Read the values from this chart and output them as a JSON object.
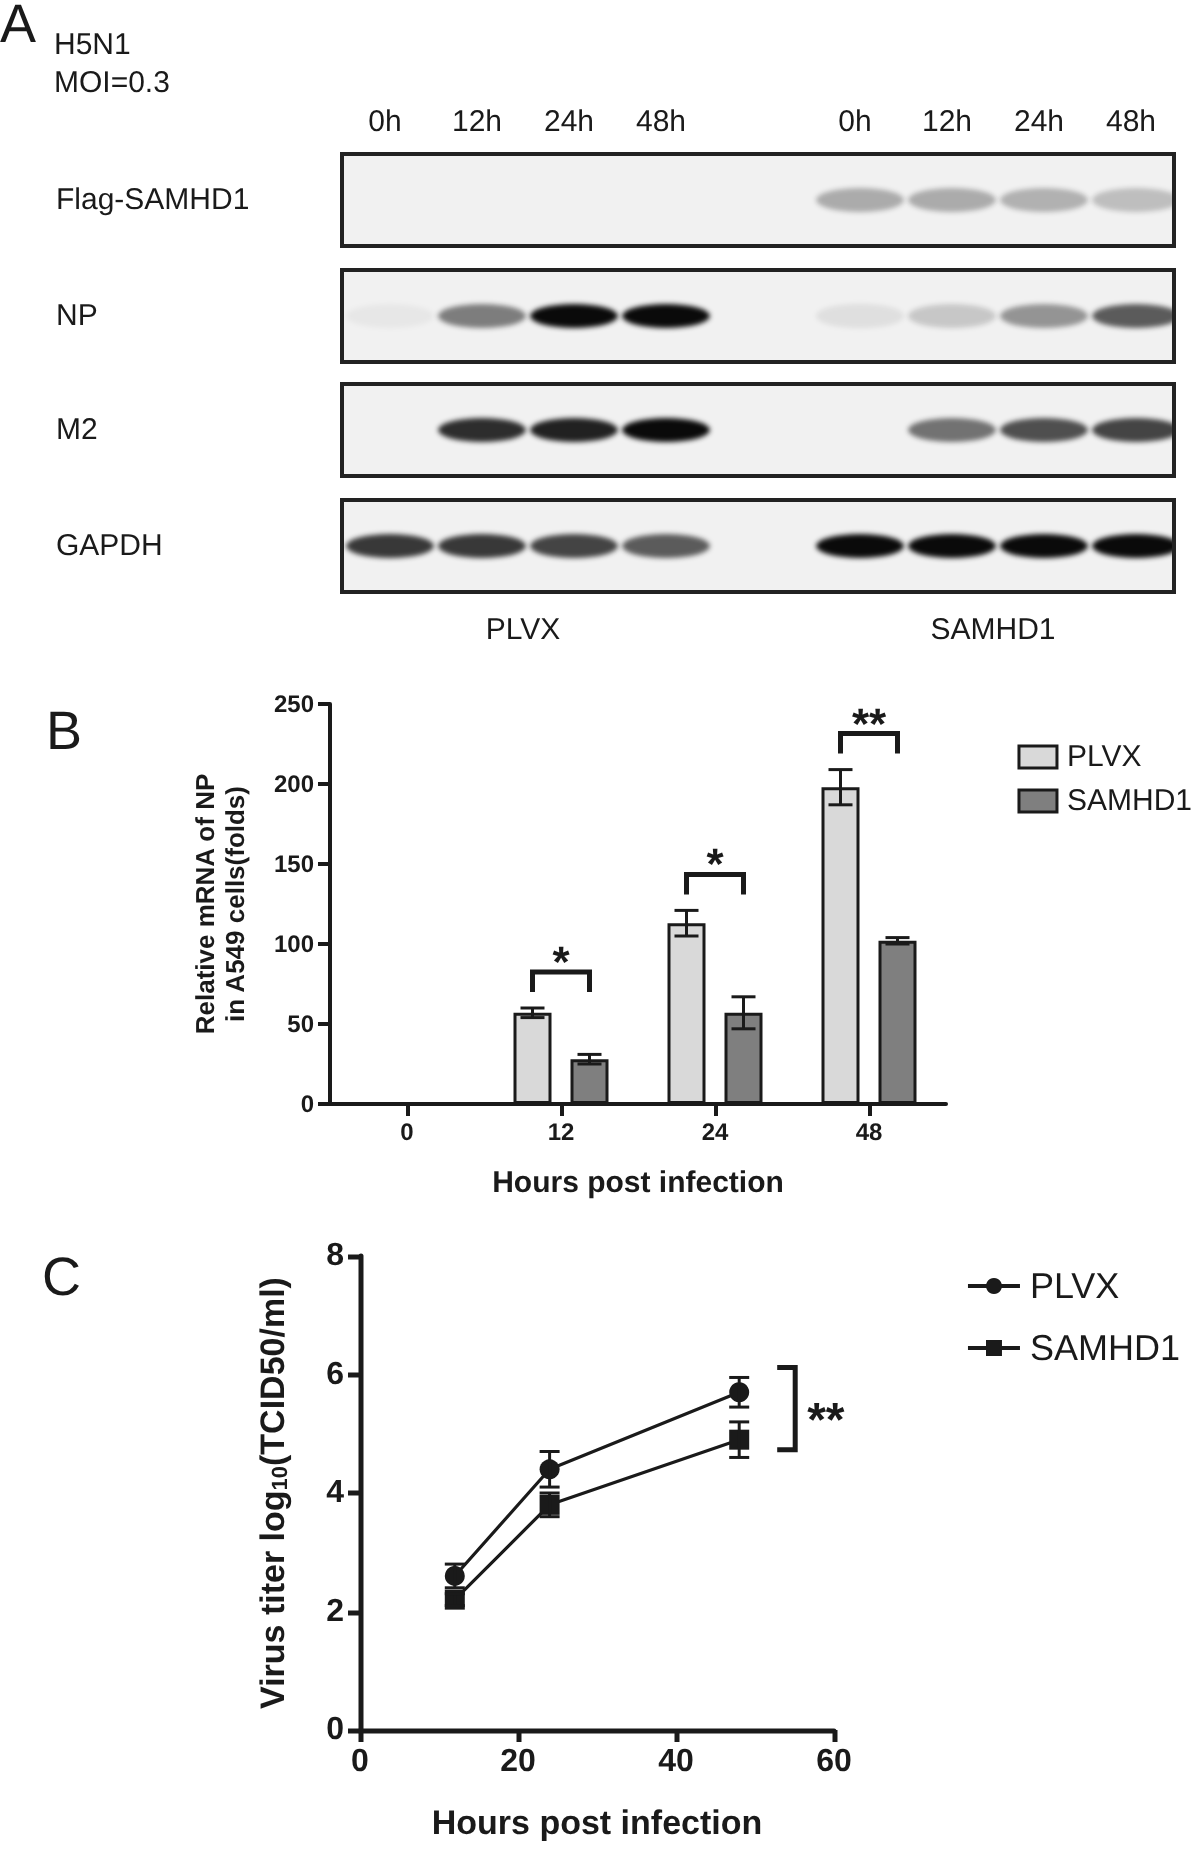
{
  "chart_data": [
    {
      "type": "other",
      "title": "A",
      "subtitle": "H5N1\nMOI=0.3",
      "categories": [
        "0h",
        "12h",
        "24h",
        "48h",
        "0h",
        "12h",
        "24h",
        "48h"
      ],
      "y_categories": [
        "Flag-SAMHD1",
        "NP",
        "M2",
        "GAPDH"
      ],
      "annotations": [
        "PLVX",
        "SAMHD1"
      ]
    },
    {
      "type": "bar",
      "title": "B",
      "categories": [
        "0",
        "12",
        "24",
        "48"
      ],
      "xlabel": "Hours post infection",
      "ylabel": "Relative mRNA of NP\nin A549 cells(folds)",
      "series": [
        {
          "name": "PLVX",
          "color": "#d9d9d9",
          "values": [
            null,
            57,
            113,
            198
          ],
          "errors": [
            null,
            3,
            8,
            11
          ]
        },
        {
          "name": "SAMHD1",
          "color": "#7f7f7f",
          "values": [
            null,
            28,
            57,
            102
          ],
          "errors": [
            null,
            3,
            10,
            2
          ]
        }
      ],
      "ylim": [
        0,
        250
      ],
      "yticks": [
        0,
        50,
        100,
        150,
        200,
        250
      ],
      "grid": false,
      "legend": "top right",
      "annotations": [
        "*",
        "*",
        "**"
      ]
    },
    {
      "type": "line",
      "title": "C",
      "x": [
        12,
        24,
        48
      ],
      "xlabel": "Hours post infection",
      "ylabel": "Virus titer log$_{10}$(TCID50/ml)",
      "series": [
        {
          "name": "PLVX",
          "color": "#1a1a1a",
          "marker": "circle",
          "values": [
            2.6,
            4.4,
            5.7
          ],
          "errors": [
            0.2,
            0.3,
            0.25
          ]
        },
        {
          "name": "SAMHD1",
          "color": "#1a1a1a",
          "marker": "square",
          "values": [
            2.2,
            3.8,
            4.9
          ],
          "errors": [
            0.1,
            0.2,
            0.3
          ]
        }
      ],
      "xlim": [
        0,
        60
      ],
      "xticks": [
        0,
        20,
        40,
        60
      ],
      "ylim": [
        0,
        8
      ],
      "yticks": [
        0,
        2,
        4,
        6,
        8
      ],
      "grid": false,
      "legend": "top right",
      "line_style": "solid",
      "annotations": [
        "**"
      ]
    }
  ]
}
